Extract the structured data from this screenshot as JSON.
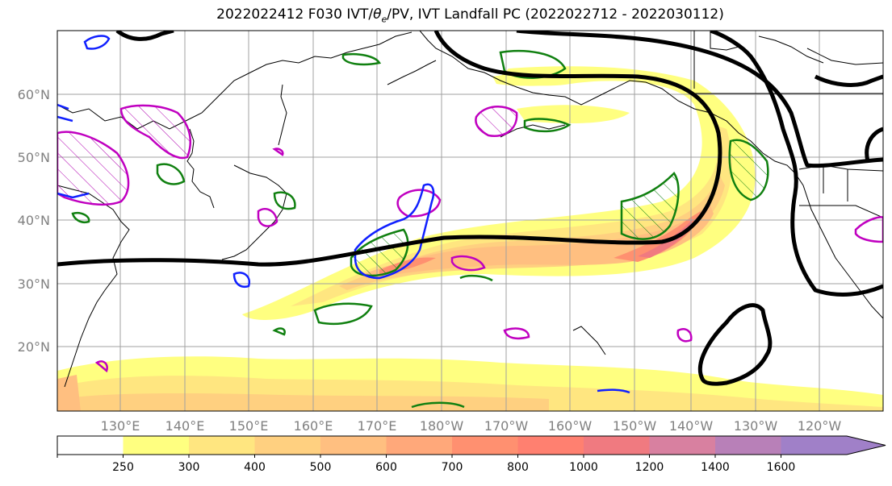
{
  "title": {
    "prefix": "2022022412 F030 IVT/",
    "theta": "θ",
    "theta_sub": "e",
    "suffix": "/PV, IVT Landfall PC (2022022712 - 2022030112)"
  },
  "map": {
    "lat_labels": [
      "60°N",
      "50°N",
      "40°N",
      "30°N",
      "20°N"
    ],
    "lon_labels": [
      "130°E",
      "140°E",
      "150°E",
      "160°E",
      "170°E",
      "180°W",
      "170°W",
      "160°W",
      "150°W",
      "140°W",
      "130°W",
      "120°W"
    ]
  },
  "colorbar": {
    "levels": [
      "250",
      "300",
      "400",
      "500",
      "600",
      "700",
      "800",
      "1000",
      "1200",
      "1400",
      "1600"
    ],
    "colors": [
      "#ffffff",
      "#ffff80",
      "#ffe680",
      "#ffd080",
      "#ffbf80",
      "#ffa87a",
      "#ff9070",
      "#ff8070",
      "#f07a80",
      "#d880a0",
      "#b880b8",
      "#a080c8",
      "#a080c8"
    ]
  }
}
